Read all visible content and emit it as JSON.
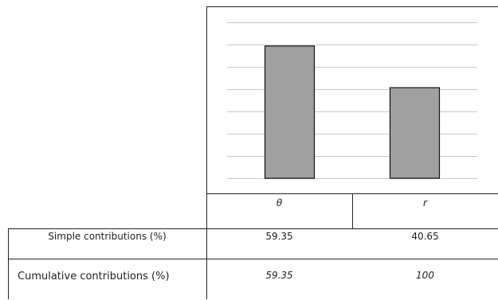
{
  "chart_data": {
    "type": "bar",
    "categories": [
      "θ",
      "r"
    ],
    "values": [
      59.35,
      40.65
    ],
    "ylim": [
      0,
      70
    ],
    "grid": true,
    "bar_color": "#a0a0a0",
    "bar_edge_color": "#111111",
    "grid_color": "#c8c8c8",
    "table": {
      "rows": [
        {
          "label": "Simple contributions (%)",
          "values": [
            "59.35",
            "40.65"
          ]
        },
        {
          "label": "Cumulative contributions (%)",
          "values": [
            "59.35",
            "100"
          ]
        }
      ]
    }
  }
}
